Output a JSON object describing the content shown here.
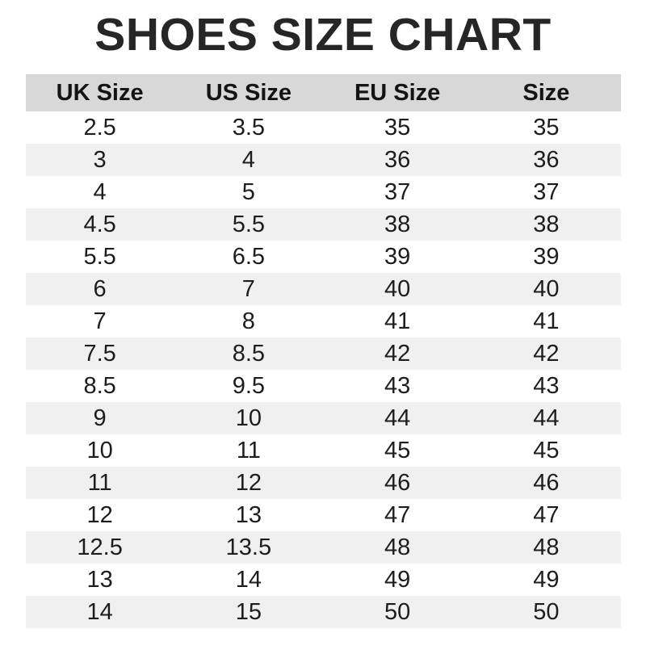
{
  "page": {
    "title": "SHOES SIZE CHART"
  },
  "colors": {
    "page_bg": "#ffffff",
    "title_color": "#262626",
    "header_bg": "#d8d8d8",
    "header_text": "#141414",
    "row_alt_bg": "#f0f0f0",
    "cell_text": "#1d1d1d"
  },
  "table": {
    "columns": [
      "UK Size",
      "US Size",
      "EU Size",
      "Size"
    ],
    "rows": [
      [
        "2.5",
        "3.5",
        "35",
        "35"
      ],
      [
        "3",
        "4",
        "36",
        "36"
      ],
      [
        "4",
        "5",
        "37",
        "37"
      ],
      [
        "4.5",
        "5.5",
        "38",
        "38"
      ],
      [
        "5.5",
        "6.5",
        "39",
        "39"
      ],
      [
        "6",
        "7",
        "40",
        "40"
      ],
      [
        "7",
        "8",
        "41",
        "41"
      ],
      [
        "7.5",
        "8.5",
        "42",
        "42"
      ],
      [
        "8.5",
        "9.5",
        "43",
        "43"
      ],
      [
        "9",
        "10",
        "44",
        "44"
      ],
      [
        "10",
        "11",
        "45",
        "45"
      ],
      [
        "11",
        "12",
        "46",
        "46"
      ],
      [
        "12",
        "13",
        "47",
        "47"
      ],
      [
        "12.5",
        "13.5",
        "48",
        "48"
      ],
      [
        "13",
        "14",
        "49",
        "49"
      ],
      [
        "14",
        "15",
        "50",
        "50"
      ]
    ]
  },
  "chart_data": {
    "type": "table",
    "title": "SHOES SIZE CHART",
    "columns": [
      "UK Size",
      "US Size",
      "EU Size",
      "Size"
    ],
    "rows": [
      [
        "2.5",
        "3.5",
        "35",
        "35"
      ],
      [
        "3",
        "4",
        "36",
        "36"
      ],
      [
        "4",
        "5",
        "37",
        "37"
      ],
      [
        "4.5",
        "5.5",
        "38",
        "38"
      ],
      [
        "5.5",
        "6.5",
        "39",
        "39"
      ],
      [
        "6",
        "7",
        "40",
        "40"
      ],
      [
        "7",
        "8",
        "41",
        "41"
      ],
      [
        "7.5",
        "8.5",
        "42",
        "42"
      ],
      [
        "8.5",
        "9.5",
        "43",
        "43"
      ],
      [
        "9",
        "10",
        "44",
        "44"
      ],
      [
        "10",
        "11",
        "45",
        "45"
      ],
      [
        "11",
        "12",
        "46",
        "46"
      ],
      [
        "12",
        "13",
        "47",
        "47"
      ],
      [
        "12.5",
        "13.5",
        "48",
        "48"
      ],
      [
        "13",
        "14",
        "49",
        "49"
      ],
      [
        "14",
        "15",
        "50",
        "50"
      ]
    ],
    "layout": {
      "zebra_striping": true,
      "header_background": "#d8d8d8",
      "alt_row_background": "#f0f0f0"
    }
  }
}
